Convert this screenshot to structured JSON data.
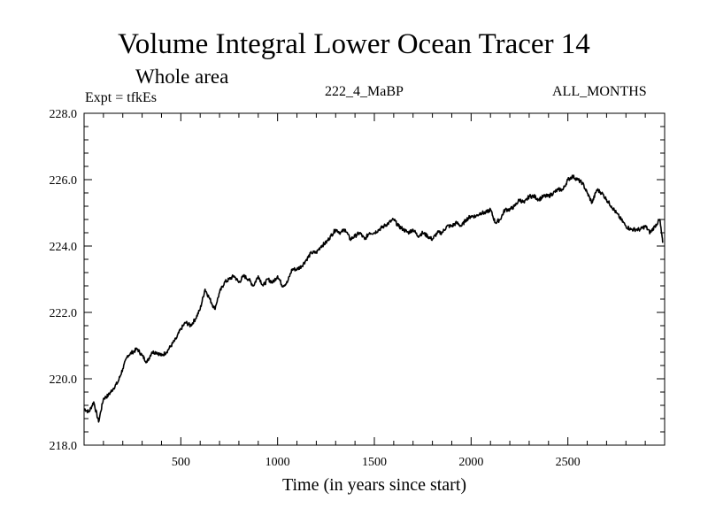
{
  "header": {
    "title": "Volume Integral Lower Ocean Tracer 14",
    "subtitle": "Whole area",
    "expt": "Expt = tfkEs",
    "run": "222_4_MaBP",
    "months": "ALL_MONTHS"
  },
  "chart_data": {
    "type": "line",
    "title": "Volume Integral Lower Ocean Tracer 14",
    "subtitle": "Whole area",
    "xlabel": "Time (in years since start)",
    "ylabel": "",
    "xlim": [
      0,
      3000
    ],
    "ylim": [
      218.0,
      228.0
    ],
    "xticks": [
      500,
      1000,
      1500,
      2000,
      2500
    ],
    "yticks": [
      218.0,
      220.0,
      222.0,
      224.0,
      226.0,
      228.0
    ],
    "ytick_labels": [
      "218.0",
      "220.0",
      "222.0",
      "224.0",
      "226.0",
      "228.0"
    ],
    "grid": false,
    "line_color": "#000000",
    "series": [
      {
        "x": [
          0,
          25,
          50,
          75,
          100,
          125,
          150,
          175,
          200,
          225,
          250,
          275,
          300,
          325,
          350,
          375,
          400,
          425,
          450,
          475,
          500,
          525,
          550,
          575,
          600,
          625,
          650,
          675,
          700,
          725,
          750,
          775,
          800,
          825,
          850,
          875,
          900,
          925,
          950,
          975,
          1000,
          1025,
          1050,
          1075,
          1100,
          1125,
          1150,
          1175,
          1200,
          1225,
          1250,
          1275,
          1300,
          1325,
          1350,
          1375,
          1400,
          1425,
          1450,
          1475,
          1500,
          1525,
          1550,
          1575,
          1600,
          1625,
          1650,
          1675,
          1700,
          1725,
          1750,
          1775,
          1800,
          1825,
          1850,
          1875,
          1900,
          1925,
          1950,
          1975,
          2000,
          2025,
          2050,
          2075,
          2100,
          2125,
          2150,
          2175,
          2200,
          2225,
          2250,
          2275,
          2300,
          2325,
          2350,
          2375,
          2400,
          2425,
          2450,
          2475,
          2500,
          2525,
          2550,
          2575,
          2600,
          2625,
          2650,
          2675,
          2700,
          2725,
          2750,
          2775,
          2800,
          2825,
          2850,
          2875,
          2900,
          2925,
          2950,
          2975,
          2990
        ],
        "values": [
          219.1,
          219.0,
          219.3,
          218.7,
          219.4,
          219.5,
          219.7,
          219.9,
          220.3,
          220.7,
          220.8,
          220.9,
          220.7,
          220.5,
          220.8,
          220.8,
          220.7,
          220.8,
          221.0,
          221.2,
          221.5,
          221.7,
          221.6,
          221.8,
          222.1,
          222.7,
          222.4,
          222.1,
          222.6,
          222.9,
          223.0,
          223.1,
          222.9,
          223.1,
          223.0,
          222.8,
          223.1,
          222.8,
          223.0,
          222.9,
          223.1,
          222.8,
          222.9,
          223.3,
          223.3,
          223.4,
          223.6,
          223.8,
          223.8,
          224.0,
          224.1,
          224.3,
          224.5,
          224.4,
          224.5,
          224.2,
          224.3,
          224.4,
          224.2,
          224.4,
          224.4,
          224.5,
          224.6,
          224.7,
          224.8,
          224.6,
          224.5,
          224.4,
          224.5,
          224.3,
          224.4,
          224.3,
          224.2,
          224.4,
          224.4,
          224.6,
          224.6,
          224.7,
          224.6,
          224.8,
          224.9,
          224.9,
          225.0,
          225.0,
          225.1,
          224.7,
          224.8,
          225.1,
          225.1,
          225.2,
          225.4,
          225.3,
          225.5,
          225.5,
          225.4,
          225.5,
          225.5,
          225.6,
          225.7,
          225.7,
          226.0,
          226.1,
          226.0,
          225.9,
          225.6,
          225.3,
          225.7,
          225.6,
          225.4,
          225.2,
          225.0,
          224.8,
          224.6,
          224.5,
          224.5,
          224.5,
          224.6,
          224.4,
          224.6,
          224.8,
          224.1
        ]
      }
    ]
  }
}
